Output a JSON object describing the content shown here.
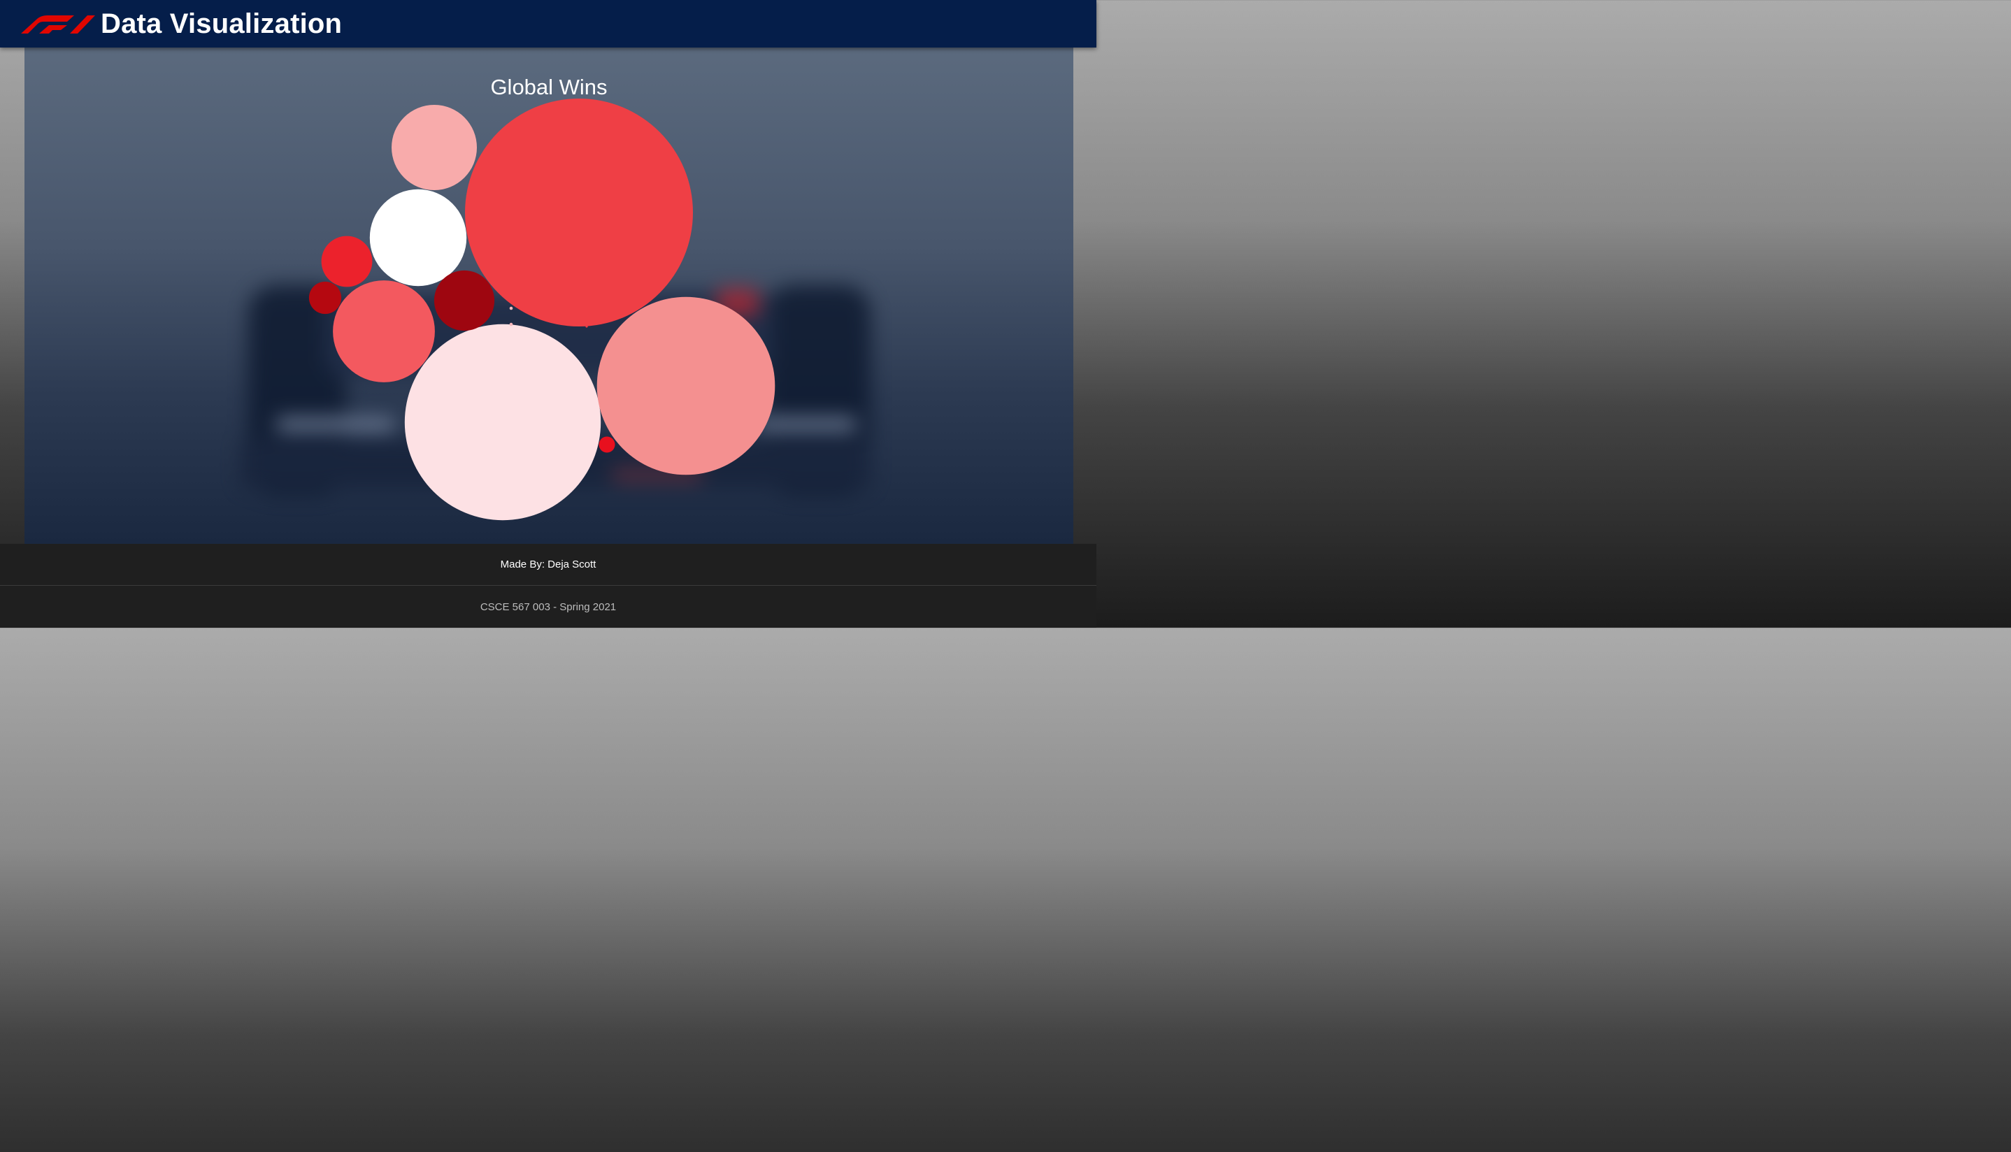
{
  "navbar": {
    "title": "Data Visualization",
    "logo_icon": "f1-logo-icon",
    "background_color": "#051e4a",
    "logo_color": "#e10600"
  },
  "chart_data": {
    "type": "bubble",
    "title": "Global Wins",
    "series": [
      {
        "value": 100,
        "color": "#ef3f45"
      },
      {
        "value": 74,
        "color": "#fde1e4"
      },
      {
        "value": 61,
        "color": "#f49090"
      },
      {
        "value": 20,
        "color": "#f3595f"
      },
      {
        "value": 18,
        "color": "#ffffff"
      },
      {
        "value": 14,
        "color": "#f8abab"
      },
      {
        "value": 7,
        "color": "#9e0610"
      },
      {
        "value": 5,
        "color": "#ec222c"
      },
      {
        "value": 2,
        "color": "#b50810"
      },
      {
        "value": 0.5,
        "color": "#e8101e"
      },
      {
        "value": 0.02,
        "color": "#f7b8bc"
      },
      {
        "value": 0.02,
        "color": "#f7b8bc"
      },
      {
        "value": 0.01,
        "color": "#ef3f45"
      }
    ]
  },
  "footer": {
    "made_by": "Made By: Deja Scott",
    "course": "CSCE 567 003 - Spring 2021"
  }
}
